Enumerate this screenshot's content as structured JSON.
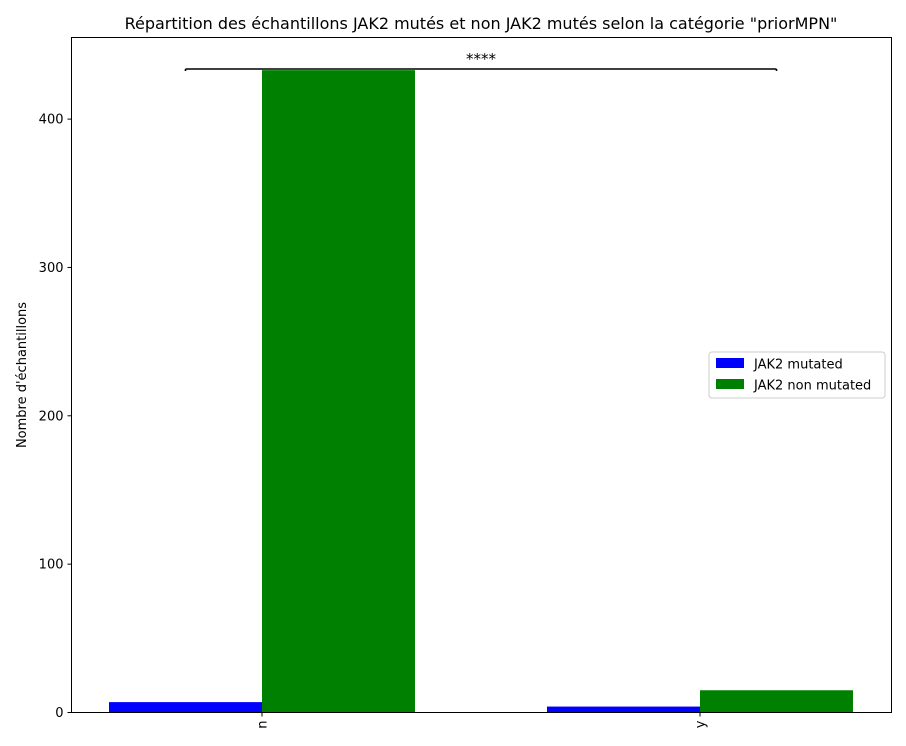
{
  "chart_data": {
    "type": "bar",
    "title": "Répartition des échantillons JAK2 mutés et non JAK2 mutés selon la catégorie \"priorMPN\"",
    "xlabel": "",
    "ylabel": "Nombre d'échantillons",
    "categories": [
      "n",
      "y"
    ],
    "series": [
      {
        "name": "JAK2 mutated",
        "color": "#0000ff",
        "values": [
          7,
          4
        ]
      },
      {
        "name": "JAK2 non mutated",
        "color": "#008000",
        "values": [
          433,
          15
        ]
      }
    ],
    "ylim": [
      0,
      455
    ],
    "yticks": [
      0,
      100,
      200,
      300,
      400
    ],
    "grid": false,
    "legend_position": "center-right",
    "significance": {
      "label": "****",
      "between": [
        "n",
        "y"
      ]
    }
  }
}
